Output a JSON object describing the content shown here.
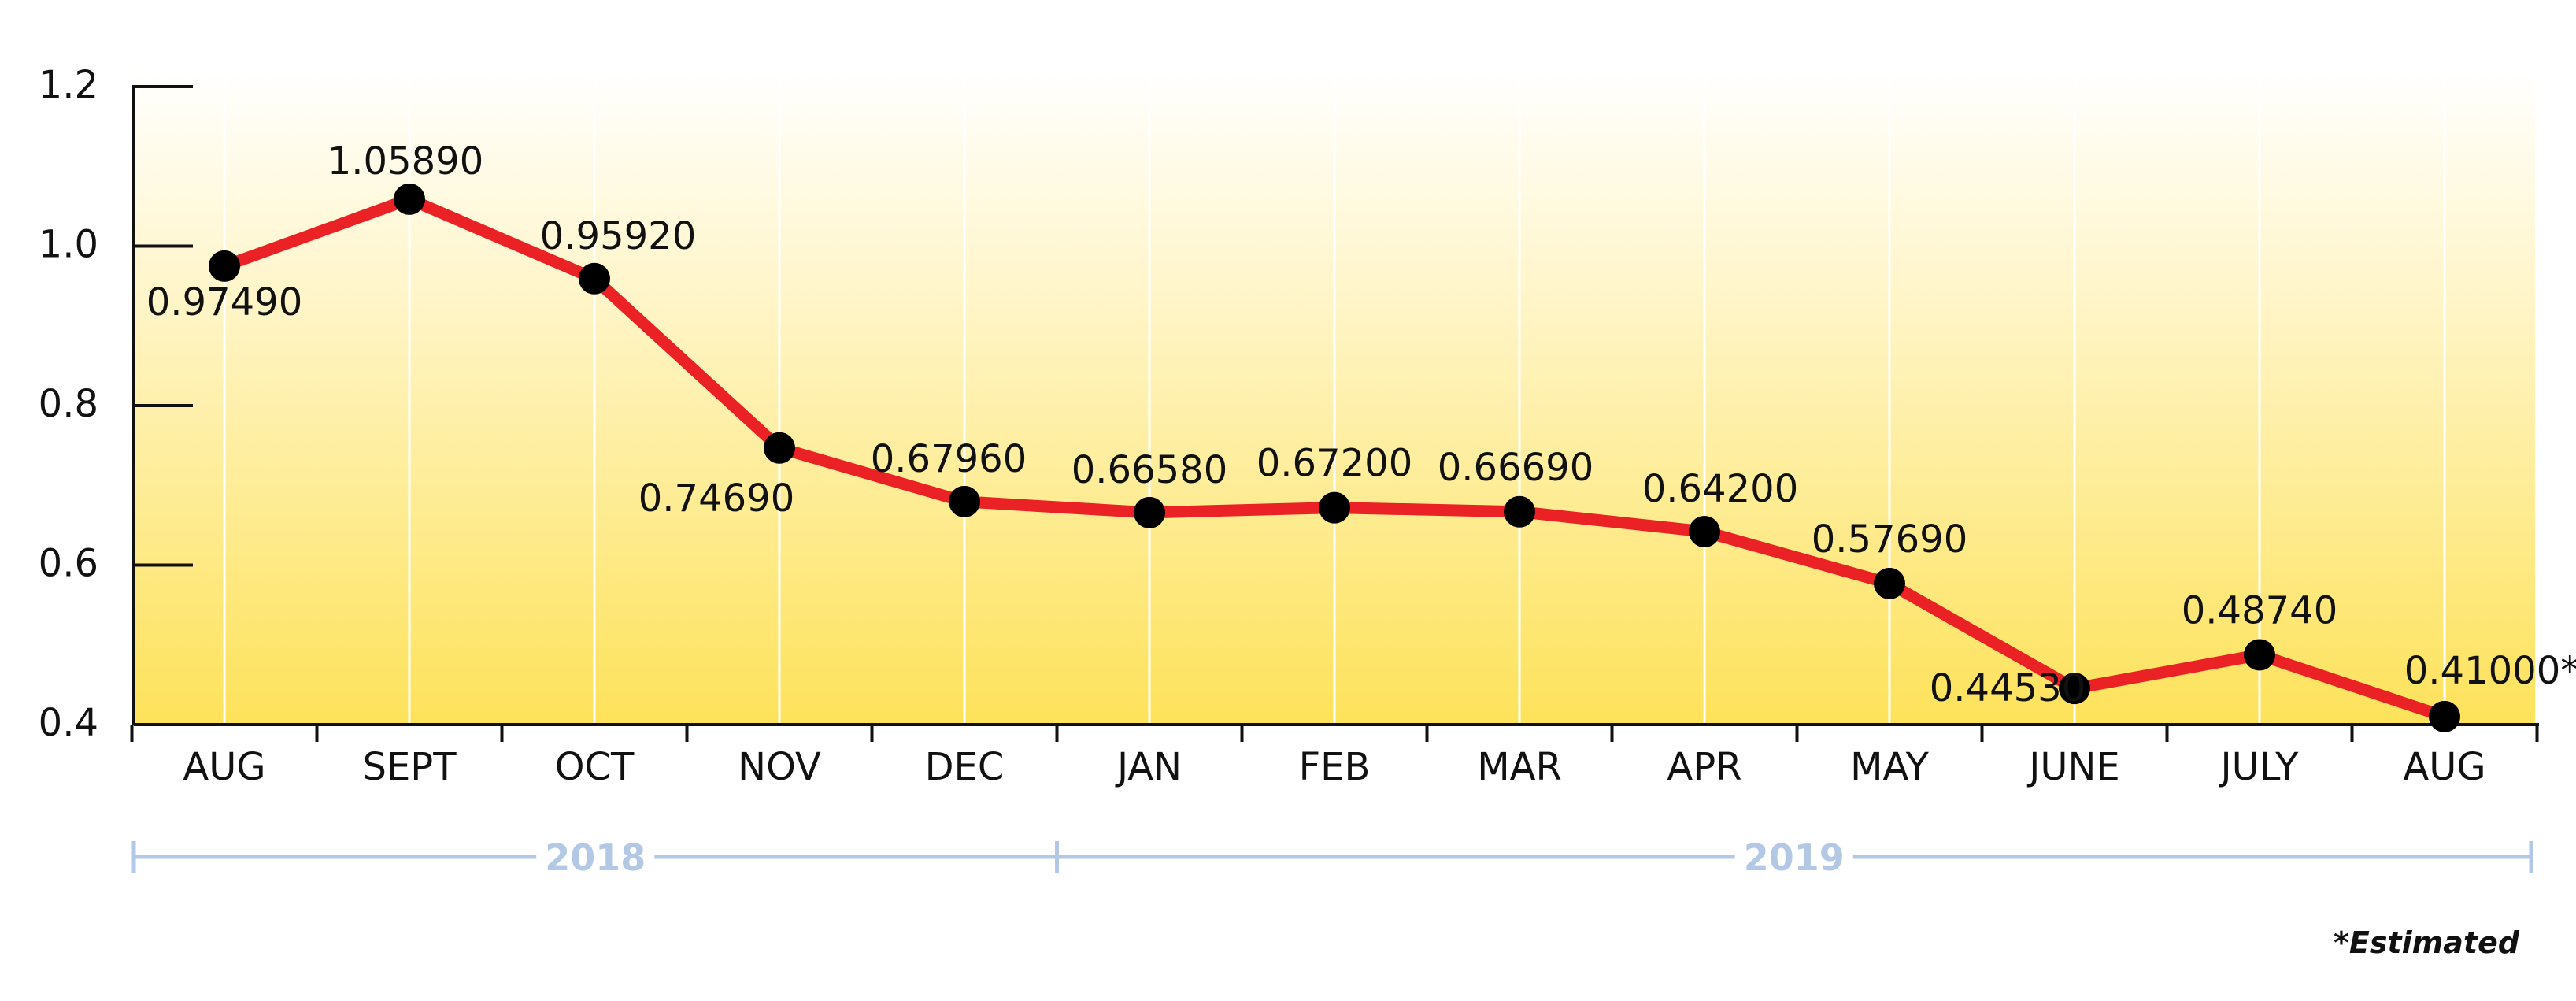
{
  "chart_data": {
    "type": "line",
    "title": "",
    "xlabel": "",
    "ylabel": "",
    "ylim": [
      0.4,
      1.2
    ],
    "yticks": [
      "0.4",
      "0.6",
      "0.8",
      "1.0",
      "1.2"
    ],
    "categories": [
      "AUG",
      "SEPT",
      "OCT",
      "NOV",
      "DEC",
      "JAN",
      "FEB",
      "MAR",
      "APR",
      "MAY",
      "JUNE",
      "JULY",
      "AUG"
    ],
    "values": [
      0.9749,
      1.0589,
      0.9592,
      0.7469,
      0.6796,
      0.6658,
      0.672,
      0.6669,
      0.642,
      0.5769,
      0.4453,
      0.4874,
      0.41
    ],
    "data_labels": [
      "0.97490",
      "1.05890",
      "0.95920",
      "0.74690",
      "0.67960",
      "0.66580",
      "0.67200",
      "0.66690",
      "0.64200",
      "0.57690",
      "0.44530",
      "0.48740",
      "0.41000*"
    ],
    "year_groups": [
      {
        "label": "2018",
        "start_index": 0,
        "end_index": 4
      },
      {
        "label": "2019",
        "start_index": 5,
        "end_index": 12
      }
    ],
    "footnote": "*Estimated",
    "grid": true,
    "legend": "none",
    "colors": {
      "line": "#ea2226",
      "marker": "#000000",
      "background_top": "#ffffff",
      "background_bottom": "#fde25a",
      "year_band": "#b3c8e4",
      "grid": "#ffffff"
    }
  }
}
